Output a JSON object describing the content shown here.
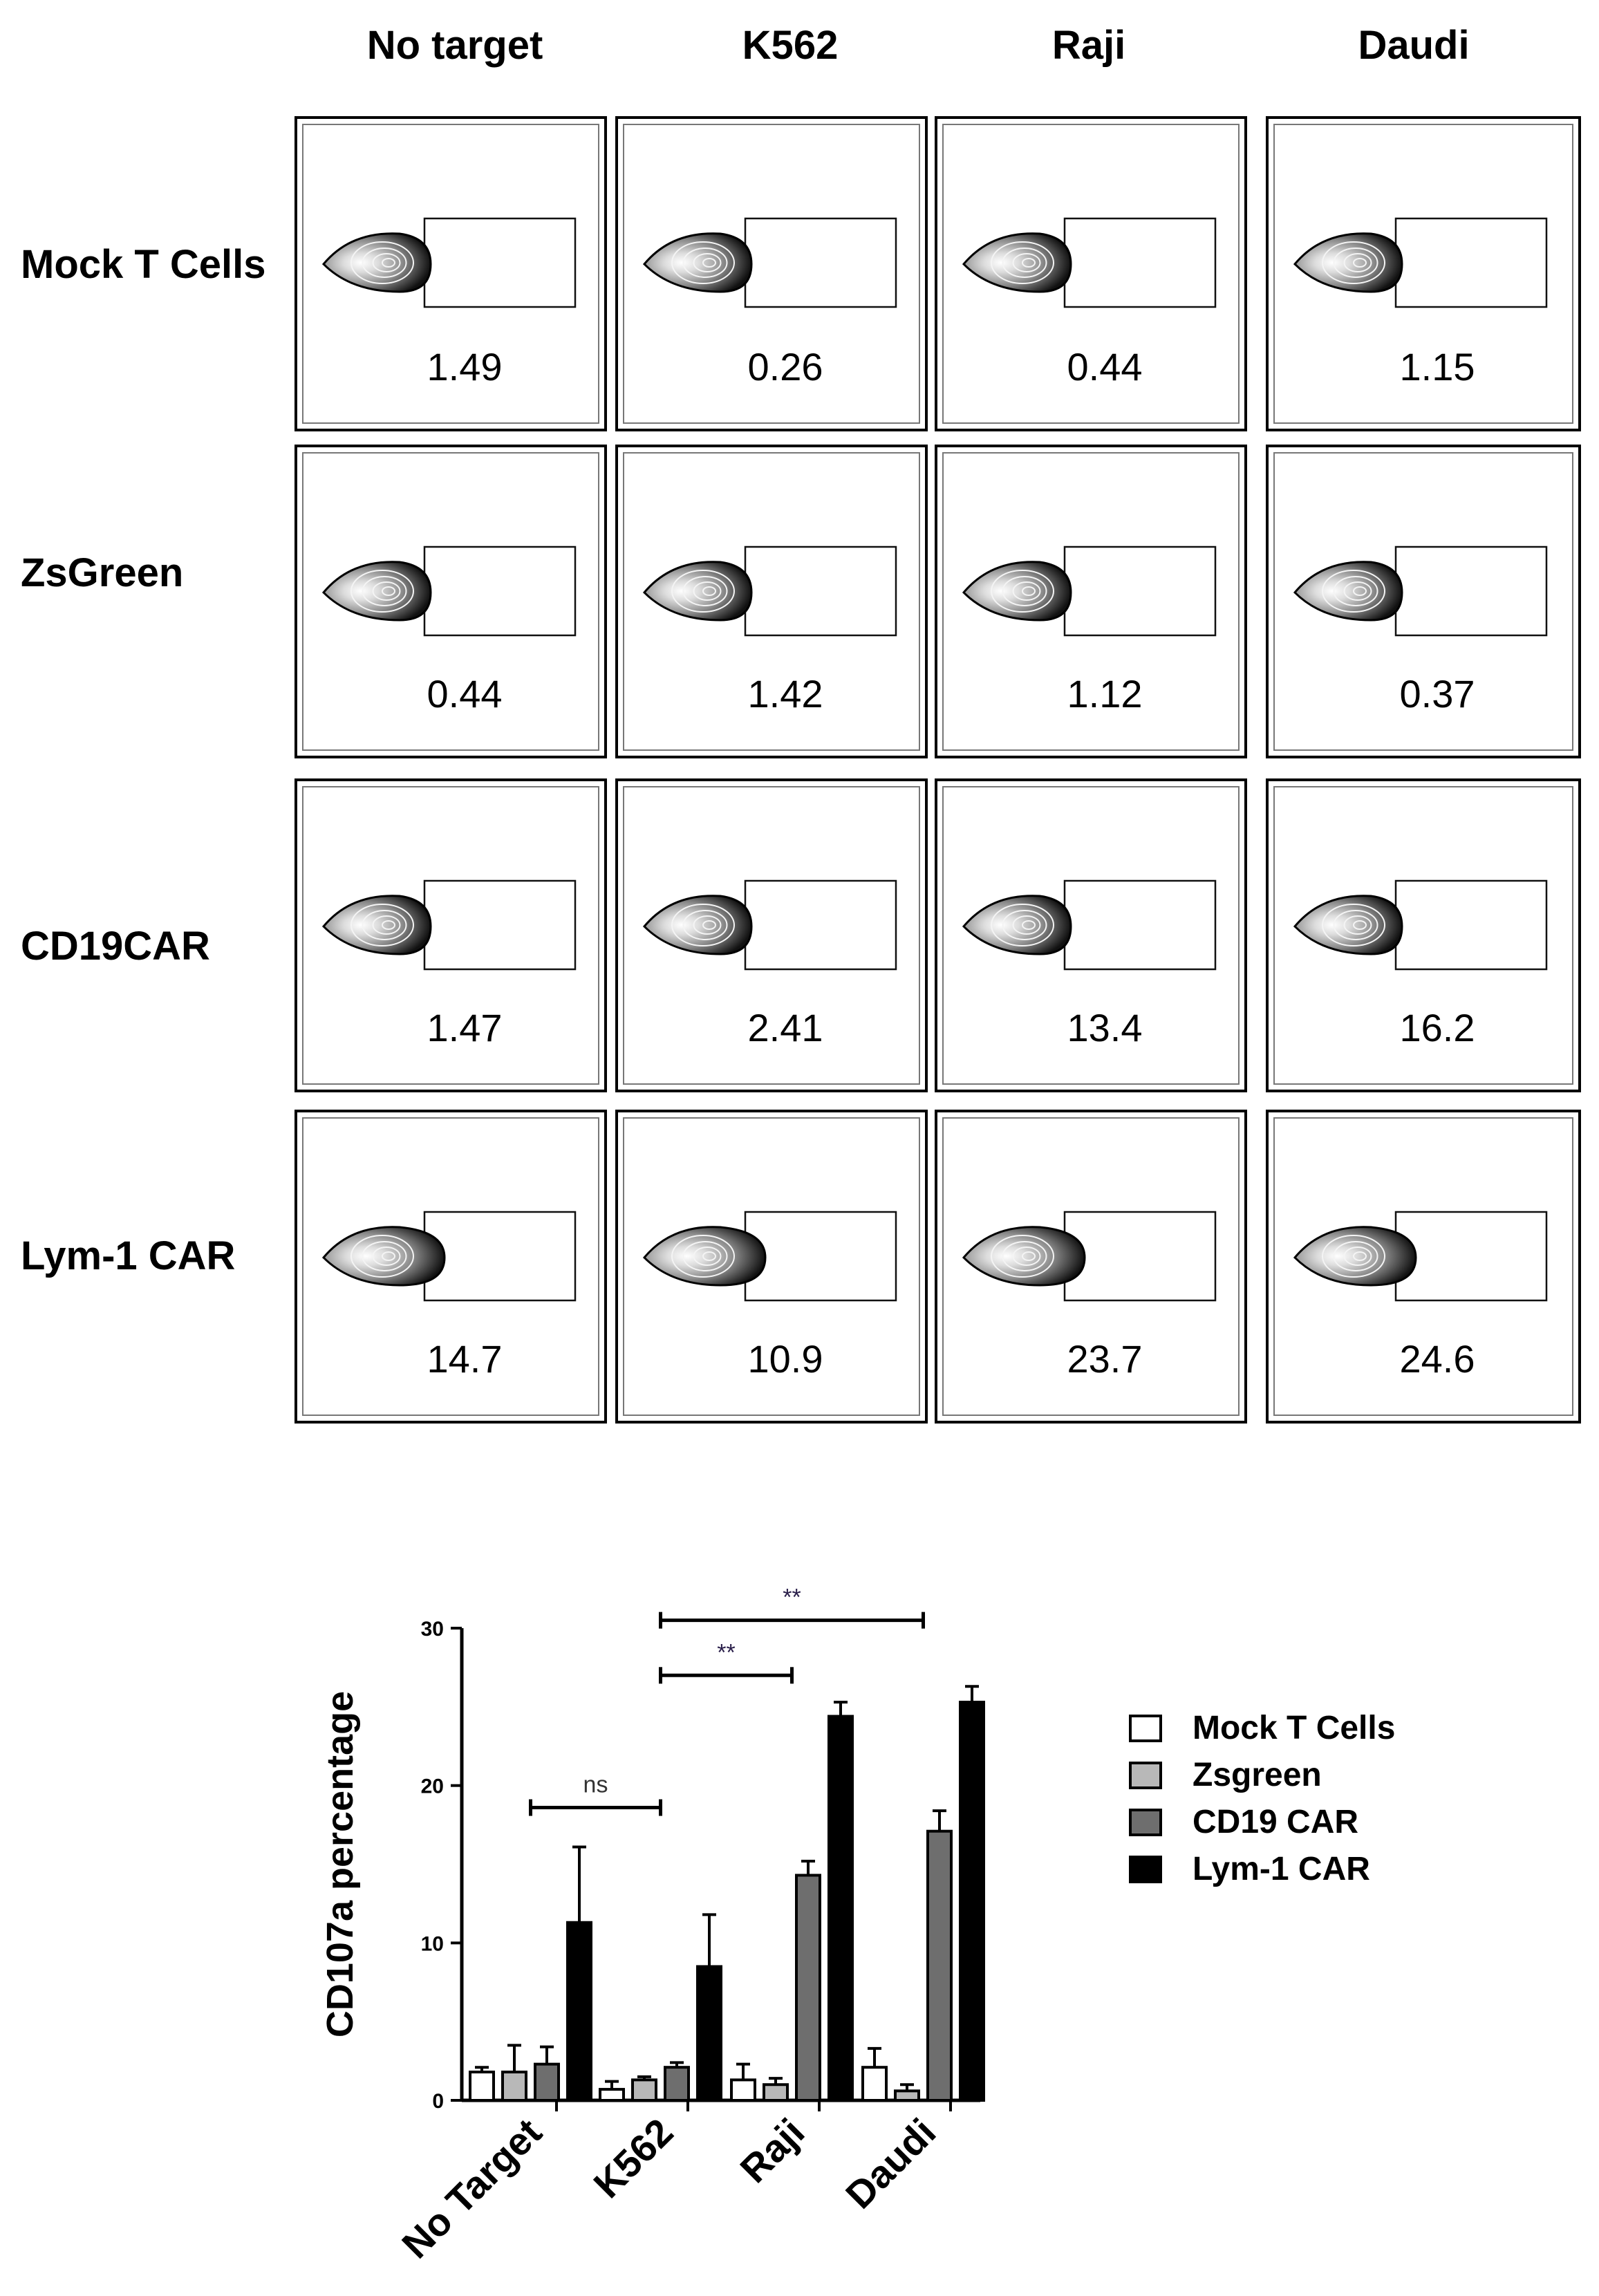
{
  "facs_panel": {
    "columns": [
      "No target",
      "K562",
      "Raji",
      "Daudi"
    ],
    "rows": [
      "Mock T Cells",
      "ZsGreen",
      "CD19CAR",
      "Lym-1 CAR"
    ],
    "values": [
      [
        "1.49",
        "0.26",
        "0.44",
        "1.15"
      ],
      [
        "0.44",
        "1.42",
        "1.12",
        "0.37"
      ],
      [
        "1.47",
        "2.41",
        "13.4",
        "16.2"
      ],
      [
        "14.7",
        "10.9",
        "23.7",
        "24.6"
      ]
    ]
  },
  "chart_data": {
    "type": "bar",
    "title": "",
    "xlabel": "",
    "ylabel": "CD107a percentage",
    "ylim": [
      0,
      30
    ],
    "yticks": [
      0,
      10,
      20,
      30
    ],
    "categories": [
      "No Target",
      "K562",
      "Raji",
      "Daudi"
    ],
    "series": [
      {
        "name": "Mock T Cells",
        "color": "#ffffff",
        "values": [
          1.8,
          0.7,
          1.3,
          2.1
        ],
        "errors": [
          0.3,
          0.5,
          1.0,
          1.2
        ]
      },
      {
        "name": "Zsgreen",
        "color": "#b8b8b8",
        "values": [
          1.8,
          1.3,
          1.0,
          0.6
        ],
        "errors": [
          1.7,
          0.2,
          0.4,
          0.4
        ]
      },
      {
        "name": "CD19 CAR",
        "color": "#6e6e6e",
        "values": [
          2.3,
          2.1,
          14.3,
          17.1
        ],
        "errors": [
          1.1,
          0.3,
          0.9,
          1.3
        ]
      },
      {
        "name": "Lym-1 CAR",
        "color": "#000000",
        "values": [
          11.3,
          8.5,
          24.4,
          25.3
        ],
        "errors": [
          4.8,
          3.3,
          0.9,
          1.0
        ]
      }
    ],
    "significance": [
      {
        "label": "ns",
        "from": "No Target",
        "to": "K562",
        "y": 18.6
      },
      {
        "label": "**",
        "from": "K562",
        "to": "Raji",
        "y": 27.0
      },
      {
        "label": "**",
        "from": "K562",
        "to": "Daudi",
        "y": 30.5
      }
    ],
    "legend_position": "right"
  }
}
